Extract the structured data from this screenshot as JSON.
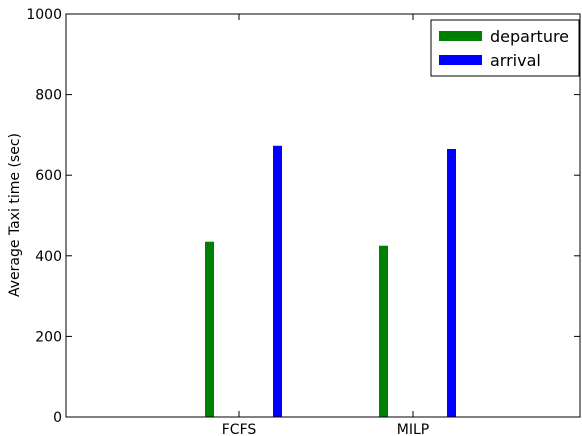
{
  "chart_data": {
    "type": "bar",
    "categories": [
      "FCFS",
      "MILP"
    ],
    "series": [
      {
        "name": "departure",
        "color": "#008000",
        "values": [
          435,
          425
        ]
      },
      {
        "name": "arrival",
        "color": "#0000ff",
        "values": [
          673,
          665
        ]
      }
    ],
    "ylabel": "Average Taxi time (sec)",
    "xlabel": "",
    "title": "",
    "ylim": [
      0,
      1000
    ],
    "yticks": [
      0,
      200,
      400,
      600,
      800,
      1000
    ],
    "grid": false,
    "legend_position": "top-right"
  }
}
